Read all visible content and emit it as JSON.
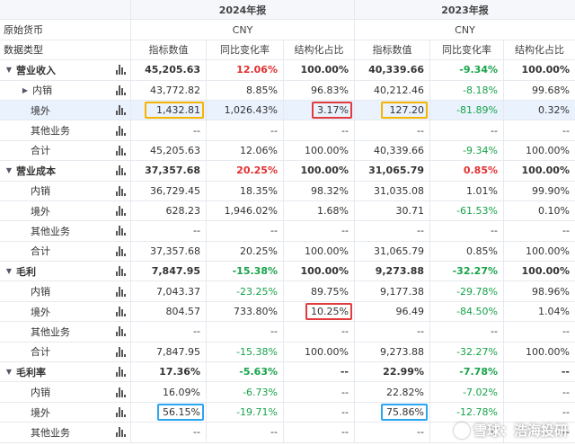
{
  "header": {
    "year_2024": "2024年报",
    "year_2023": "2023年报",
    "currency_label": "原始货币",
    "currency_2024": "CNY",
    "currency_2023": "CNY",
    "data_type_label": "数据类型",
    "columns": [
      "指标数值",
      "同比变化率",
      "结构化占比",
      "指标数值",
      "同比变化率",
      "结构化占比"
    ]
  },
  "rows": [
    {
      "label": "营业收入",
      "group": true,
      "caret": "▼",
      "vals": [
        "45,205.63",
        "12.06%",
        "100.00%",
        "40,339.66",
        "-9.34%",
        "100.00%"
      ],
      "signs": [
        "",
        "pos",
        "",
        "",
        "neg",
        ""
      ]
    },
    {
      "label": "内销",
      "caret": "▶",
      "vals": [
        "43,772.82",
        "8.85%",
        "96.83%",
        "40,212.46",
        "-8.18%",
        "99.68%"
      ],
      "signs": [
        "",
        "",
        "",
        "",
        "neg",
        ""
      ]
    },
    {
      "label": "境外",
      "selected": true,
      "vals": [
        "1,432.81",
        "1,026.43%",
        "3.17%",
        "127.20",
        "-81.89%",
        "0.32%"
      ],
      "signs": [
        "",
        "",
        "",
        "",
        "neg",
        ""
      ]
    },
    {
      "label": "其他业务",
      "vals": [
        "--",
        "--",
        "--",
        "--",
        "--",
        "--"
      ],
      "signs": [
        "",
        "",
        "",
        "",
        "",
        ""
      ]
    },
    {
      "label": "合计",
      "vals": [
        "45,205.63",
        "12.06%",
        "100.00%",
        "40,339.66",
        "-9.34%",
        "100.00%"
      ],
      "signs": [
        "",
        "",
        "",
        "",
        "neg",
        ""
      ]
    },
    {
      "label": "营业成本",
      "group": true,
      "caret": "▼",
      "vals": [
        "37,357.68",
        "20.25%",
        "100.00%",
        "31,065.79",
        "0.85%",
        "100.00%"
      ],
      "signs": [
        "",
        "pos",
        "",
        "",
        "pos",
        ""
      ]
    },
    {
      "label": "内销",
      "vals": [
        "36,729.45",
        "18.35%",
        "98.32%",
        "31,035.08",
        "1.01%",
        "99.90%"
      ],
      "signs": [
        "",
        "",
        "",
        "",
        "",
        ""
      ]
    },
    {
      "label": "境外",
      "vals": [
        "628.23",
        "1,946.02%",
        "1.68%",
        "30.71",
        "-61.53%",
        "0.10%"
      ],
      "signs": [
        "",
        "",
        "",
        "",
        "neg",
        ""
      ]
    },
    {
      "label": "其他业务",
      "vals": [
        "--",
        "--",
        "--",
        "--",
        "--",
        "--"
      ],
      "signs": [
        "",
        "",
        "",
        "",
        "",
        ""
      ]
    },
    {
      "label": "合计",
      "vals": [
        "37,357.68",
        "20.25%",
        "100.00%",
        "31,065.79",
        "0.85%",
        "100.00%"
      ],
      "signs": [
        "",
        "",
        "",
        "",
        "",
        ""
      ]
    },
    {
      "label": "毛利",
      "group": true,
      "caret": "▼",
      "vals": [
        "7,847.95",
        "-15.38%",
        "100.00%",
        "9,273.88",
        "-32.27%",
        "100.00%"
      ],
      "signs": [
        "",
        "neg",
        "",
        "",
        "neg",
        ""
      ]
    },
    {
      "label": "内销",
      "vals": [
        "7,043.37",
        "-23.25%",
        "89.75%",
        "9,177.38",
        "-29.78%",
        "98.96%"
      ],
      "signs": [
        "",
        "neg",
        "",
        "",
        "neg",
        ""
      ]
    },
    {
      "label": "境外",
      "vals": [
        "804.57",
        "733.80%",
        "10.25%",
        "96.49",
        "-84.50%",
        "1.04%"
      ],
      "signs": [
        "",
        "",
        "",
        "",
        "neg",
        ""
      ]
    },
    {
      "label": "其他业务",
      "vals": [
        "--",
        "--",
        "--",
        "--",
        "--",
        "--"
      ],
      "signs": [
        "",
        "",
        "",
        "",
        "",
        ""
      ]
    },
    {
      "label": "合计",
      "vals": [
        "7,847.95",
        "-15.38%",
        "100.00%",
        "9,273.88",
        "-32.27%",
        "100.00%"
      ],
      "signs": [
        "",
        "neg",
        "",
        "",
        "neg",
        ""
      ]
    },
    {
      "label": "毛利率",
      "group": true,
      "caret": "▼",
      "vals": [
        "17.36%",
        "-5.63%",
        "--",
        "22.99%",
        "-7.78%",
        "--"
      ],
      "signs": [
        "",
        "neg",
        "",
        "",
        "neg",
        ""
      ]
    },
    {
      "label": "内销",
      "vals": [
        "16.09%",
        "-6.73%",
        "--",
        "22.82%",
        "-7.02%",
        "--"
      ],
      "signs": [
        "",
        "neg",
        "",
        "",
        "neg",
        ""
      ]
    },
    {
      "label": "境外",
      "vals": [
        "56.15%",
        "-19.71%",
        "--",
        "75.86%",
        "-12.78%",
        "--"
      ],
      "signs": [
        "",
        "neg",
        "",
        "",
        "neg",
        ""
      ]
    },
    {
      "label": "其他业务",
      "vals": [
        "--",
        "--",
        "--",
        "--",
        "--",
        "--"
      ],
      "signs": [
        "",
        "",
        "",
        "",
        "",
        ""
      ]
    }
  ],
  "highlights": [
    {
      "row": 2,
      "col": 1,
      "color": "y"
    },
    {
      "row": 2,
      "col": 3,
      "color": "r"
    },
    {
      "row": 2,
      "col": 4,
      "color": "y"
    },
    {
      "row": 12,
      "col": 3,
      "color": "r"
    },
    {
      "row": 17,
      "col": 1,
      "color": "b"
    },
    {
      "row": 17,
      "col": 4,
      "color": "b"
    }
  ],
  "watermark": "雪球：浩海投研",
  "icons": {
    "caret_down": "caret-down-icon",
    "caret_right": "caret-right-icon",
    "chart": "bar-chart-icon"
  }
}
